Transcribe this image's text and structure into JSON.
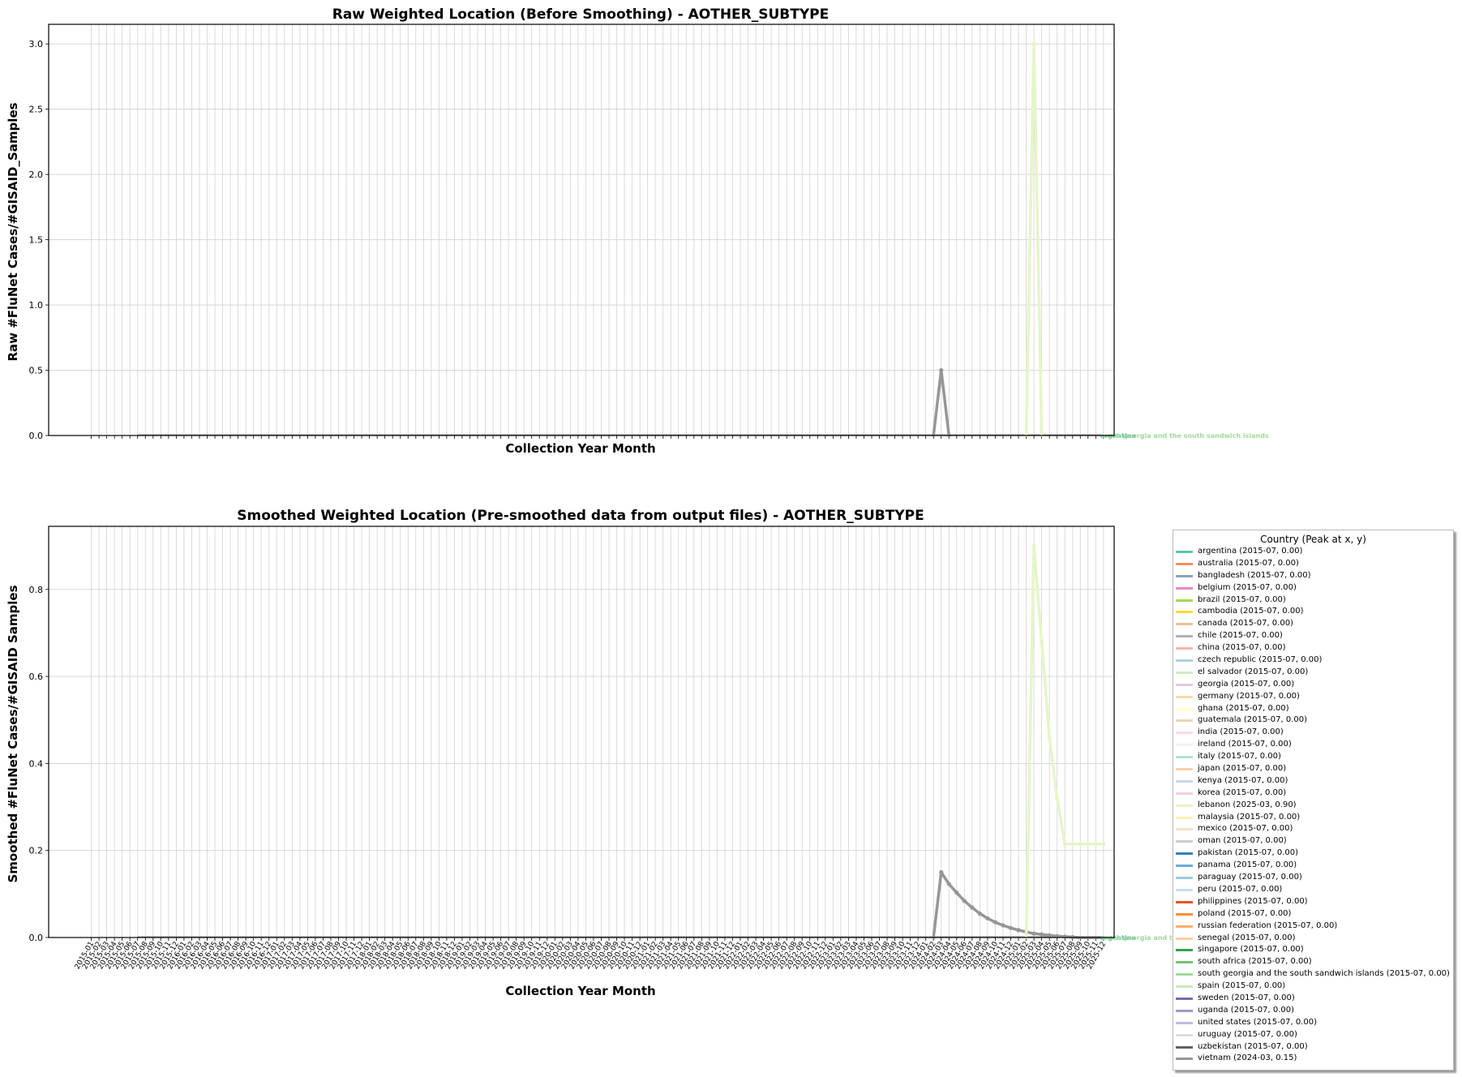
{
  "figure": {
    "panels": [
      {
        "title": "Raw Weighted Location (Before Smoothing) - AOTHER_SUBTYPE",
        "xlabel": "Collection Year Month",
        "ylabel": "Raw #FluNet Cases/#GISAID_Samples",
        "show_xticklabels": false
      },
      {
        "title": "Smoothed Weighted Location (Pre-smoothed data from output files) - AOTHER_SUBTYPE",
        "xlabel": "Collection Year Month",
        "ylabel": "Smoothed #FluNet Cases/#GISAID Samples",
        "show_xticklabels": true
      }
    ],
    "legend": {
      "title": "Country (Peak at x, y)",
      "items": [
        {
          "label": "argentina  (2015-07, 0.00)",
          "color": "#66c2a5"
        },
        {
          "label": "australia  (2015-07, 0.00)",
          "color": "#fc8d62"
        },
        {
          "label": "bangladesh  (2015-07, 0.00)",
          "color": "#8da0cb"
        },
        {
          "label": "belgium  (2015-07, 0.00)",
          "color": "#e78ac3"
        },
        {
          "label": "brazil  (2015-07, 0.00)",
          "color": "#a6d854"
        },
        {
          "label": "cambodia  (2015-07, 0.00)",
          "color": "#ffd92f"
        },
        {
          "label": "canada  (2015-07, 0.00)",
          "color": "#e5c494"
        },
        {
          "label": "chile  (2015-07, 0.00)",
          "color": "#b3b3b3"
        },
        {
          "label": "china  (2015-07, 0.00)",
          "color": "#fbb4ae"
        },
        {
          "label": "czech republic  (2015-07, 0.00)",
          "color": "#b3cde3"
        },
        {
          "label": "el salvador  (2015-07, 0.00)",
          "color": "#ccebc5"
        },
        {
          "label": "georgia  (2015-07, 0.00)",
          "color": "#decbe4"
        },
        {
          "label": "germany  (2015-07, 0.00)",
          "color": "#fed9a6"
        },
        {
          "label": "ghana  (2015-07, 0.00)",
          "color": "#ffffcc"
        },
        {
          "label": "guatemala  (2015-07, 0.00)",
          "color": "#e5d8bd"
        },
        {
          "label": "india  (2015-07, 0.00)",
          "color": "#fddaec"
        },
        {
          "label": "ireland  (2015-07, 0.00)",
          "color": "#f2f2f2"
        },
        {
          "label": "italy  (2015-07, 0.00)",
          "color": "#b3e2cd"
        },
        {
          "label": "japan  (2015-07, 0.00)",
          "color": "#fdcdac"
        },
        {
          "label": "kenya  (2015-07, 0.00)",
          "color": "#cbd5e8"
        },
        {
          "label": "korea  (2015-07, 0.00)",
          "color": "#f4cae4"
        },
        {
          "label": "lebanon  (2025-03, 0.90)",
          "color": "#e6f5c9"
        },
        {
          "label": "malaysia  (2015-07, 0.00)",
          "color": "#fff2ae"
        },
        {
          "label": "mexico  (2015-07, 0.00)",
          "color": "#f1e2cc"
        },
        {
          "label": "oman  (2015-07, 0.00)",
          "color": "#cccccc"
        },
        {
          "label": "pakistan  (2015-07, 0.00)",
          "color": "#3182bd"
        },
        {
          "label": "panama  (2015-07, 0.00)",
          "color": "#6baed6"
        },
        {
          "label": "paraguay  (2015-07, 0.00)",
          "color": "#9ecae1"
        },
        {
          "label": "peru  (2015-07, 0.00)",
          "color": "#c6dbef"
        },
        {
          "label": "philippines  (2015-07, 0.00)",
          "color": "#e6550d"
        },
        {
          "label": "poland  (2015-07, 0.00)",
          "color": "#fd8d3c"
        },
        {
          "label": "russian federation  (2015-07, 0.00)",
          "color": "#fdae6b"
        },
        {
          "label": "senegal  (2015-07, 0.00)",
          "color": "#fdd0a2"
        },
        {
          "label": "singapore  (2015-07, 0.00)",
          "color": "#31a354"
        },
        {
          "label": "south africa  (2015-07, 0.00)",
          "color": "#74c476"
        },
        {
          "label": "south georgia and the south sandwich islands  (2015-07, 0.00)",
          "color": "#a1d99b"
        },
        {
          "label": "spain  (2015-07, 0.00)",
          "color": "#c7e9c0"
        },
        {
          "label": "sweden  (2015-07, 0.00)",
          "color": "#756bb1"
        },
        {
          "label": "uganda  (2015-07, 0.00)",
          "color": "#9e9ac8"
        },
        {
          "label": "united states  (2015-07, 0.00)",
          "color": "#bcbddc"
        },
        {
          "label": "uruguay  (2015-07, 0.00)",
          "color": "#dadaeb"
        },
        {
          "label": "uzbekistan  (2015-07, 0.00)",
          "color": "#636363"
        },
        {
          "label": "vietnam  (2024-03, 0.15)",
          "color": "#969696"
        }
      ]
    },
    "end_annotations": [
      "argentina",
      "south georgia and the south sandwich islands"
    ]
  },
  "chart_data": [
    {
      "type": "line",
      "title": "Raw Weighted Location (Before Smoothing) - AOTHER_SUBTYPE",
      "xlabel": "Collection Year Month",
      "ylabel": "Raw #FluNet Cases/#GISAID_Samples",
      "x_range": [
        "2015-01",
        "2025-12"
      ],
      "ylim": [
        0,
        3.15
      ],
      "yticks": [
        0.0,
        0.5,
        1.0,
        1.5,
        2.0,
        2.5,
        3.0
      ],
      "grid": true,
      "baseline_note": "all other countries are 0.0 for all months",
      "series": [
        {
          "name": "vietnam",
          "color": "#969696",
          "points": [
            [
              "2024-02",
              0.0
            ],
            [
              "2024-03",
              0.5
            ],
            [
              "2024-04",
              0.0
            ]
          ]
        },
        {
          "name": "lebanon",
          "color": "#e6f5c9",
          "points": [
            [
              "2025-02",
              0.0
            ],
            [
              "2025-03",
              3.0
            ],
            [
              "2025-04",
              0.0
            ]
          ]
        }
      ]
    },
    {
      "type": "line",
      "title": "Smoothed Weighted Location (Pre-smoothed data from output files) - AOTHER_SUBTYPE",
      "xlabel": "Collection Year Month",
      "ylabel": "Smoothed #FluNet Cases/#GISAID Samples",
      "x_range": [
        "2015-01",
        "2025-12"
      ],
      "ylim": [
        0,
        0.945
      ],
      "yticks": [
        0.0,
        0.2,
        0.4,
        0.6,
        0.8
      ],
      "grid": true,
      "legend_position": "outside right",
      "baseline_note": "all other countries are 0.0 for all months",
      "series": [
        {
          "name": "vietnam",
          "color": "#969696",
          "points": [
            [
              "2024-02",
              0.0
            ],
            [
              "2024-03",
              0.15
            ],
            [
              "2024-04",
              0.123
            ],
            [
              "2024-05",
              0.103
            ],
            [
              "2024-06",
              0.084
            ],
            [
              "2024-07",
              0.069
            ],
            [
              "2024-08",
              0.055
            ],
            [
              "2024-09",
              0.044
            ],
            [
              "2024-10",
              0.035
            ],
            [
              "2024-11",
              0.028
            ],
            [
              "2024-12",
              0.022
            ],
            [
              "2025-01",
              0.017
            ],
            [
              "2025-02",
              0.013
            ],
            [
              "2025-03",
              0.009
            ],
            [
              "2025-04",
              0.007
            ],
            [
              "2025-05",
              0.005
            ],
            [
              "2025-06",
              0.003
            ],
            [
              "2025-07",
              0.002
            ],
            [
              "2025-08",
              0.001
            ],
            [
              "2025-09",
              0.0
            ],
            [
              "2025-10",
              0.0
            ],
            [
              "2025-11",
              0.0
            ],
            [
              "2025-12",
              0.0
            ]
          ]
        },
        {
          "name": "lebanon",
          "color": "#e6f5c9",
          "points": [
            [
              "2025-02",
              0.0
            ],
            [
              "2025-03",
              0.9
            ],
            [
              "2025-04",
              0.68
            ],
            [
              "2025-05",
              0.46
            ],
            [
              "2025-06",
              0.32
            ],
            [
              "2025-07",
              0.215
            ],
            [
              "2025-08",
              0.215
            ],
            [
              "2025-09",
              0.215
            ],
            [
              "2025-10",
              0.215
            ],
            [
              "2025-11",
              0.215
            ],
            [
              "2025-12",
              0.215
            ]
          ]
        }
      ]
    }
  ]
}
